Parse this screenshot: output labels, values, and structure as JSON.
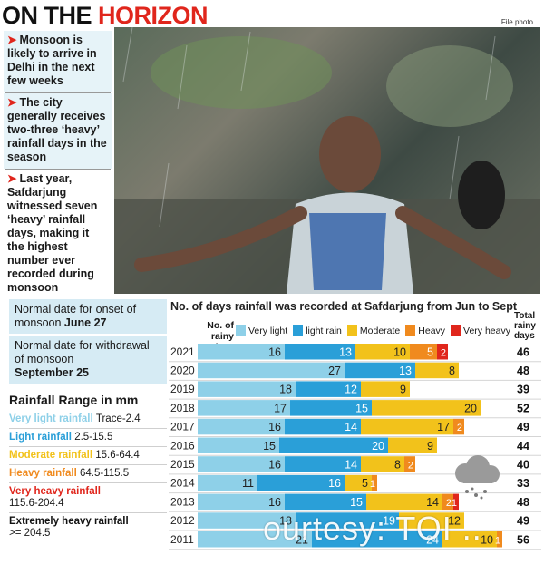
{
  "headline": {
    "part1": "ON THE ",
    "part2": "HORIZON"
  },
  "photo_credit": "File photo",
  "bullets": [
    "Monsoon is likely to arrive in Delhi in the next few weeks",
    "The city generally receives two-three ‘heavy’ rainfall days in the season",
    "Last year, Safdarjung witnessed seven ‘heavy’ rainfall days, making it the highest number ever recorded during monsoon"
  ],
  "dates": {
    "onset_label": "Normal date for onset of monsoon",
    "onset_value": "June 27",
    "withdrawal_label": "Normal date for withdrawal of monsoon",
    "withdrawal_value": "September 25"
  },
  "rainfall_range": {
    "title": "Rainfall Range in mm",
    "rows": [
      {
        "name": "Very light rainfall",
        "value": "Trace-2.4",
        "color": "#8ed0e8"
      },
      {
        "name": "Light rainfall",
        "value": "2.5-15.5",
        "color": "#2a9fd8"
      },
      {
        "name": "Moderate rainfall",
        "value": "15.6-64.4",
        "color": "#f2c21b"
      },
      {
        "name": "Heavy rainfall",
        "value": "64.5-115.5",
        "color": "#f08a1e"
      },
      {
        "name": "Very heavy rainfall",
        "value": "115.6-204.4",
        "color": "#e0261c"
      },
      {
        "name": "Extremely heavy rainfall",
        "value": ">= 204.5",
        "color": "#111111"
      }
    ]
  },
  "chart_headers": {
    "rainy_days": "No. of rainy days",
    "total": "Total rainy days"
  },
  "watermark": "ourtesy: TOI ..",
  "chart_data": {
    "type": "bar",
    "orientation": "horizontal",
    "stacked": true,
    "title": "No. of days rainfall was recorded at Safdarjung from Jun to Sept",
    "categories": [
      "2021",
      "2020",
      "2019",
      "2018",
      "2017",
      "2016",
      "2015",
      "2014",
      "2013",
      "2012",
      "2011"
    ],
    "series": [
      {
        "name": "Very light",
        "color": "#8ed0e8",
        "values": [
          16,
          27,
          18,
          17,
          16,
          15,
          16,
          11,
          16,
          18,
          21
        ]
      },
      {
        "name": "light rain",
        "color": "#2a9fd8",
        "values": [
          13,
          13,
          12,
          15,
          14,
          20,
          14,
          16,
          15,
          19,
          24
        ]
      },
      {
        "name": "Moderate",
        "color": "#f2c21b",
        "values": [
          10,
          8,
          9,
          20,
          17,
          9,
          8,
          5,
          14,
          12,
          10
        ]
      },
      {
        "name": "Heavy",
        "color": "#f08a1e",
        "values": [
          5,
          0,
          0,
          0,
          2,
          0,
          2,
          1,
          2,
          0,
          1
        ]
      },
      {
        "name": "Very heavy",
        "color": "#e0261c",
        "values": [
          2,
          0,
          0,
          0,
          0,
          0,
          0,
          0,
          1,
          0,
          0
        ]
      }
    ],
    "totals": [
      46,
      48,
      39,
      52,
      49,
      44,
      40,
      33,
      48,
      49,
      56
    ],
    "xlim": [
      0,
      57
    ]
  }
}
